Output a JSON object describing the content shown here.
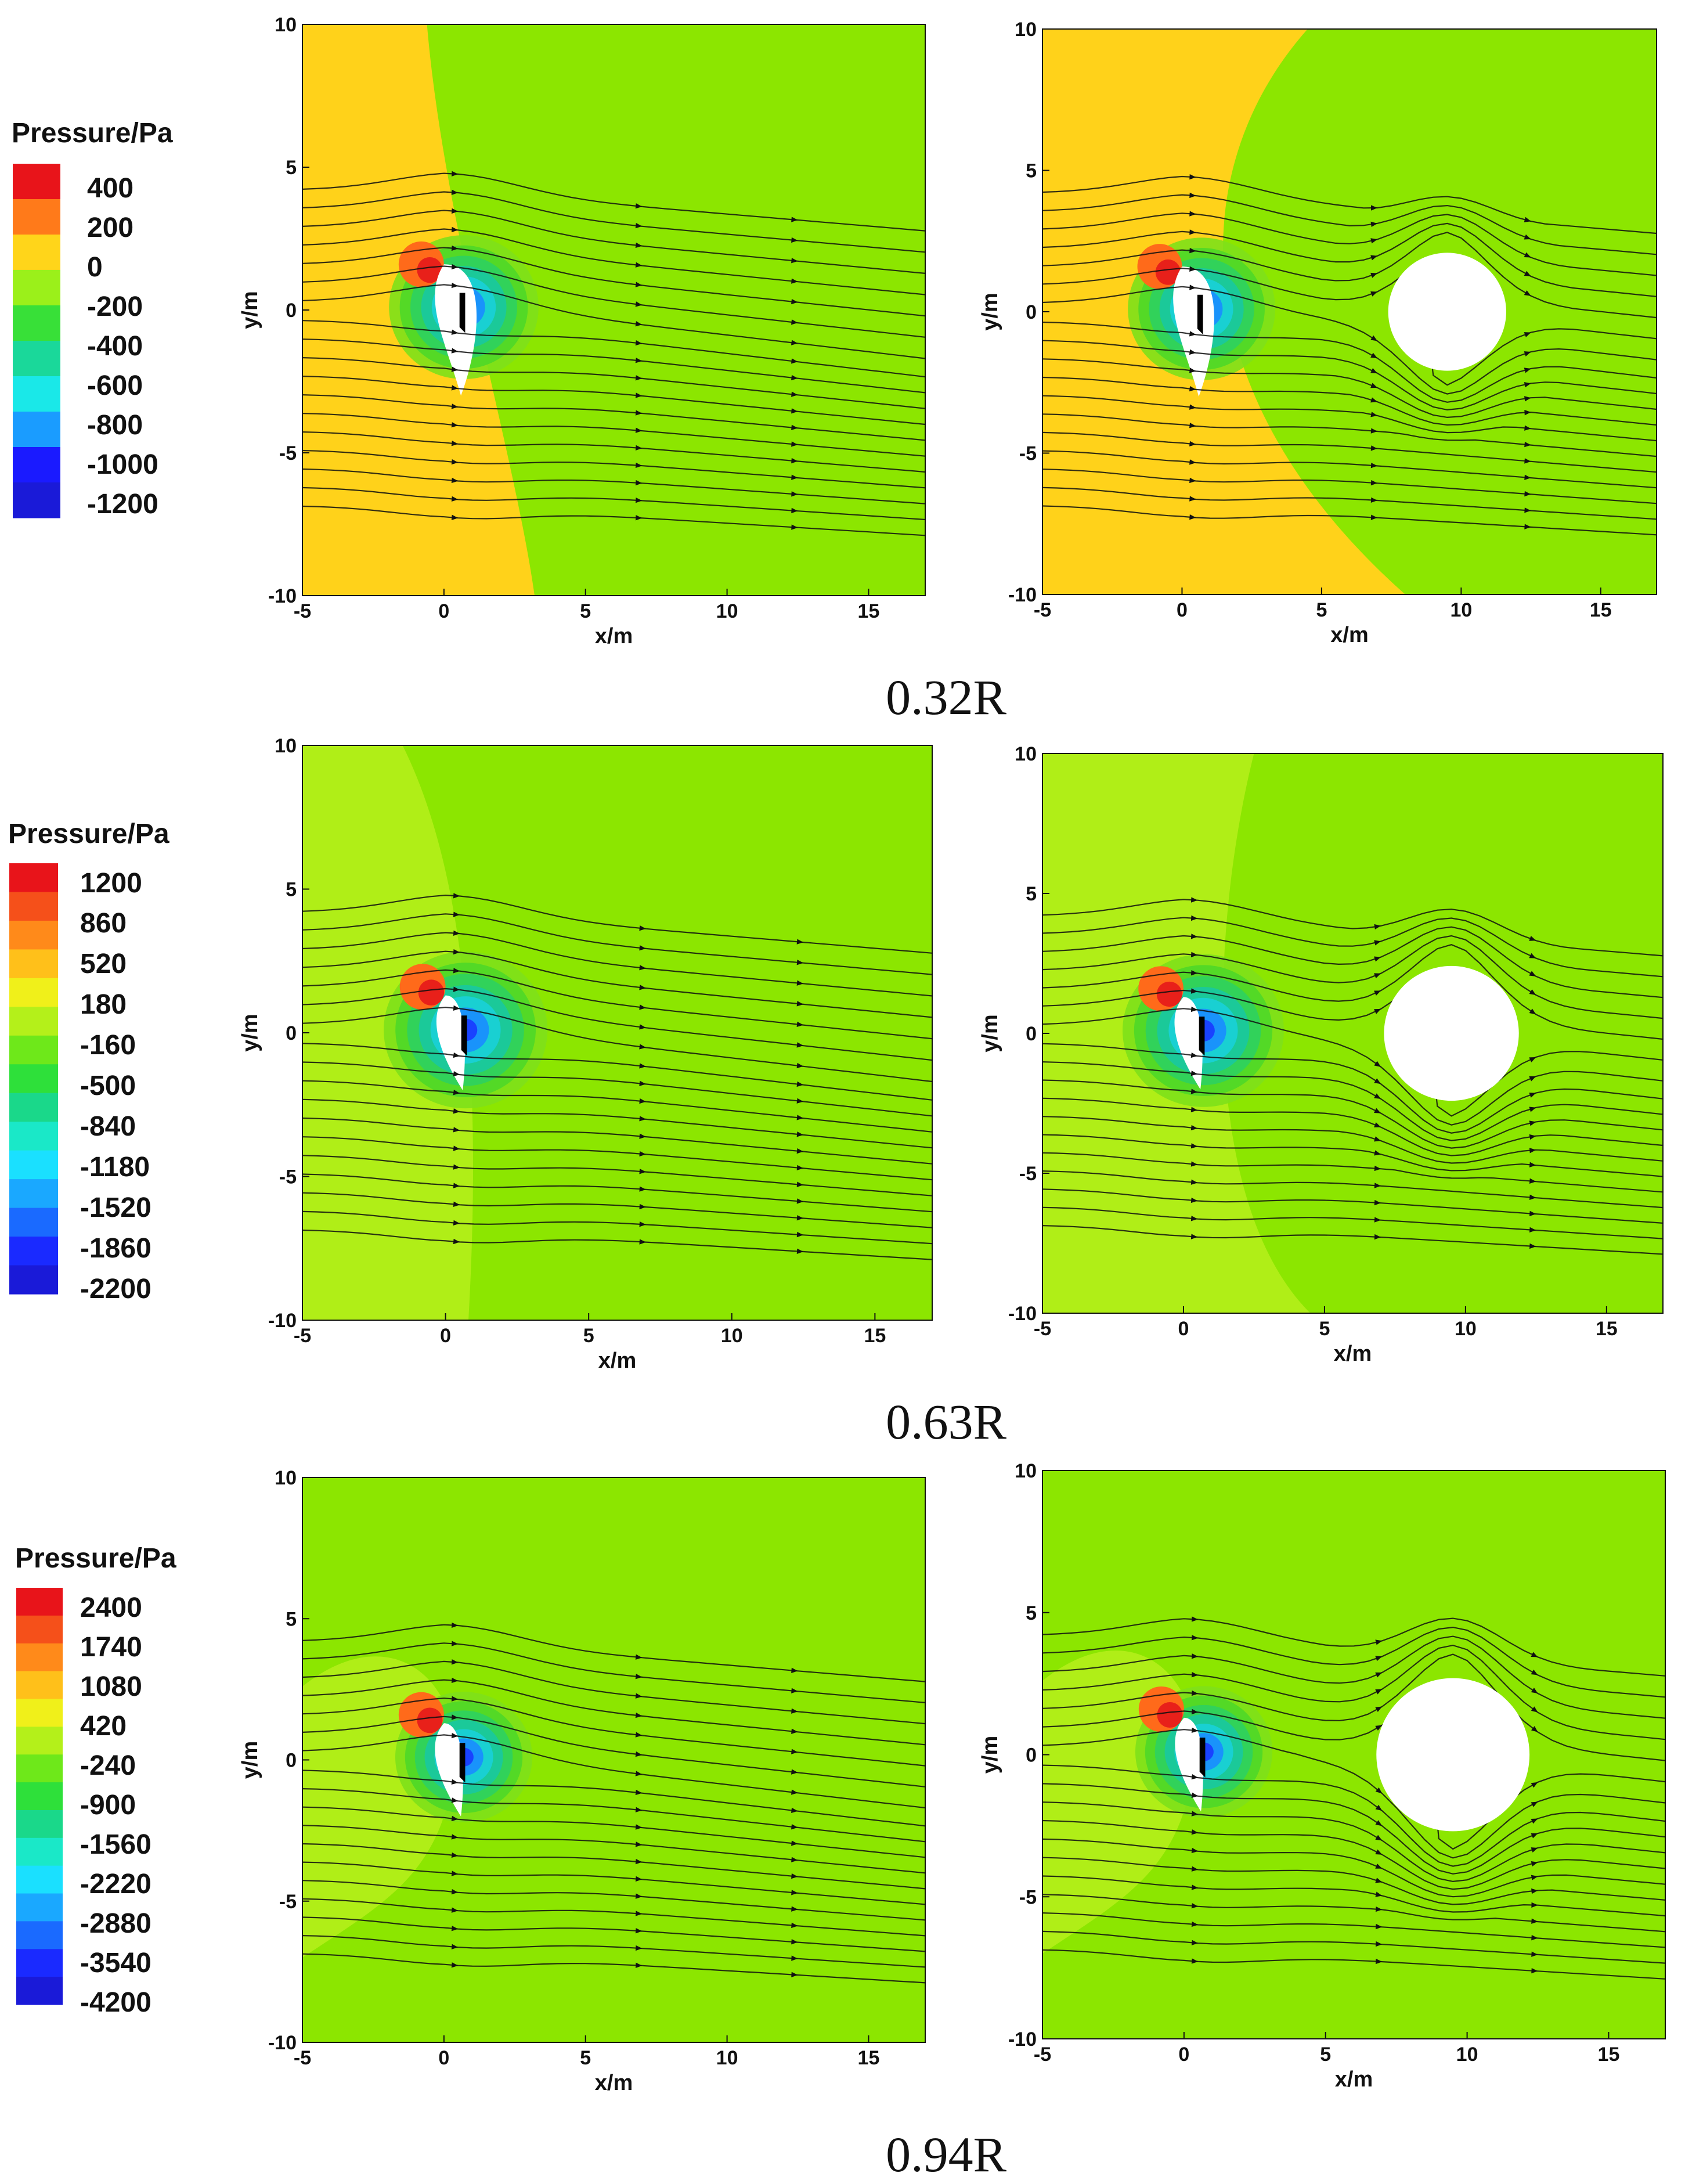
{
  "figure": {
    "captions": [
      "0.32R",
      "0.63R",
      "0.94R"
    ]
  },
  "chart_data": [
    {
      "type": "contour",
      "panel": "0.32R-isolated",
      "xlabel": "x/m",
      "ylabel": "y/m",
      "xlim": [
        -5,
        17
      ],
      "ylim": [
        -10,
        10
      ],
      "xticks": [
        -5,
        0,
        5,
        10,
        15
      ],
      "yticks": [
        -10,
        -5,
        0,
        5,
        10
      ],
      "tower": false
    },
    {
      "type": "contour",
      "panel": "0.32R-with-tower",
      "xlabel": "x/m",
      "ylabel": "y/m",
      "xlim": [
        -5,
        17
      ],
      "ylim": [
        -10,
        10
      ],
      "xticks": [
        -5,
        0,
        5,
        10,
        15
      ],
      "yticks": [
        -10,
        -5,
        0,
        5,
        10
      ],
      "tower": true,
      "tower_center": [
        9.5,
        0
      ],
      "tower_radius": 2.1
    },
    {
      "type": "contour",
      "panel": "0.63R-isolated",
      "xlabel": "x/m",
      "ylabel": "y/m",
      "xlim": [
        -5,
        17
      ],
      "ylim": [
        -10,
        10
      ],
      "xticks": [
        -5,
        0,
        5,
        10,
        15
      ],
      "yticks": [
        -10,
        -5,
        0,
        5,
        10
      ],
      "tower": false
    },
    {
      "type": "contour",
      "panel": "0.63R-with-tower",
      "xlabel": "x/m",
      "ylabel": "y/m",
      "xlim": [
        -5,
        17
      ],
      "ylim": [
        -10,
        10
      ],
      "xticks": [
        -5,
        0,
        5,
        10,
        15
      ],
      "yticks": [
        -10,
        -5,
        0,
        5,
        10
      ],
      "tower": true,
      "tower_center": [
        9.5,
        0
      ],
      "tower_radius": 2.4
    },
    {
      "type": "contour",
      "panel": "0.94R-isolated",
      "xlabel": "x/m",
      "ylabel": "y/m",
      "xlim": [
        -5,
        17
      ],
      "ylim": [
        -10,
        10
      ],
      "xticks": [
        -5,
        0,
        5,
        10,
        15
      ],
      "yticks": [
        -10,
        -5,
        0,
        5,
        10
      ],
      "tower": false
    },
    {
      "type": "contour",
      "panel": "0.94R-with-tower",
      "xlabel": "x/m",
      "ylabel": "y/m",
      "xlim": [
        -5,
        17
      ],
      "ylim": [
        -10,
        10
      ],
      "xticks": [
        -5,
        0,
        5,
        10,
        15
      ],
      "yticks": [
        -10,
        -5,
        0,
        5,
        10
      ],
      "tower": true,
      "tower_center": [
        9.5,
        0
      ],
      "tower_radius": 2.7
    }
  ],
  "legends": [
    {
      "title": "Pressure/Pa",
      "labels": [
        "400",
        "200",
        "0",
        "-200",
        "-400",
        "-600",
        "-800",
        "-1000",
        "-1200"
      ],
      "colors": [
        "#e8141a",
        "#ff7a1a",
        "#ffd51a",
        "#9bf01a",
        "#38e038",
        "#1ad89a",
        "#1ae8e8",
        "#1a9cff",
        "#1a1aff",
        "#1a1ad8"
      ]
    },
    {
      "title": "Pressure/Pa",
      "labels": [
        "1200",
        "860",
        "520",
        "180",
        "-160",
        "-500",
        "-840",
        "-1180",
        "-1520",
        "-1860",
        "-2200"
      ],
      "colors": [
        "#e8141a",
        "#f5501a",
        "#ff8a1a",
        "#ffc01a",
        "#f0f01a",
        "#b4f01a",
        "#6ee81a",
        "#2ee03a",
        "#1ad88a",
        "#1ae8c8",
        "#1ae0ff",
        "#1aa8ff",
        "#1a6aff",
        "#1a2aff",
        "#1a1ad8"
      ]
    },
    {
      "title": "Pressure/Pa",
      "labels": [
        "2400",
        "1740",
        "1080",
        "420",
        "-240",
        "-900",
        "-1560",
        "-2220",
        "-2880",
        "-3540",
        "-4200"
      ],
      "colors": [
        "#e8141a",
        "#f5501a",
        "#ff8a1a",
        "#ffc01a",
        "#f0f01a",
        "#b4f01a",
        "#6ee81a",
        "#2ee03a",
        "#1ad88a",
        "#1ae8c8",
        "#1ae0ff",
        "#1aa8ff",
        "#1a6aff",
        "#1a2aff",
        "#1a1ad8"
      ]
    }
  ],
  "colors": {
    "field_green": "#8ce600",
    "field_green_2": "#86e800",
    "field_yellow": "#ffd21a",
    "field_pale": "#b4ee1a"
  }
}
